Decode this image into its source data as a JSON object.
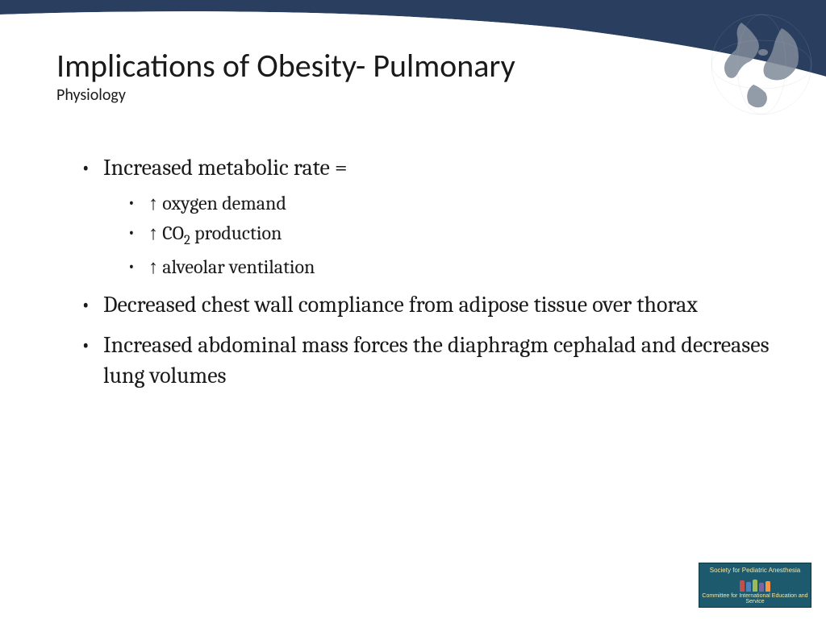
{
  "colors": {
    "curve_dark": "#2a3f5f",
    "curve_light": "#4a6285",
    "globe_gray": "#808a9a",
    "text": "#1a1a1a",
    "background": "#ffffff",
    "footer_bg": "#1e5a6e",
    "footer_text": "#f5e6a0"
  },
  "title": "Implications of Obesity- Pulmonary",
  "subtitle": "Physiology",
  "bullets": [
    {
      "text": "Increased metabolic rate =",
      "children": [
        {
          "arrow": "↑",
          "text": "oxygen demand"
        },
        {
          "arrow": "↑",
          "text_html": "CO<sub>2</sub> production"
        },
        {
          "arrow": "↑",
          "text": "alveolar  ventilation"
        }
      ]
    },
    {
      "text": "Decreased chest wall compliance from adipose tissue over thorax"
    },
    {
      "text": "Increased abdominal mass forces the diaphragm cephalad and decreases lung volumes"
    }
  ],
  "footer": {
    "org_name": "Society for Pediatric Anesthesia",
    "tagline": "Committee for International Education and Service"
  },
  "typography": {
    "title_font": "Calibri",
    "title_size_pt": 40,
    "subtitle_size_pt": 20,
    "body_font": "Cambria",
    "level1_size_pt": 28,
    "level2_size_pt": 24
  }
}
